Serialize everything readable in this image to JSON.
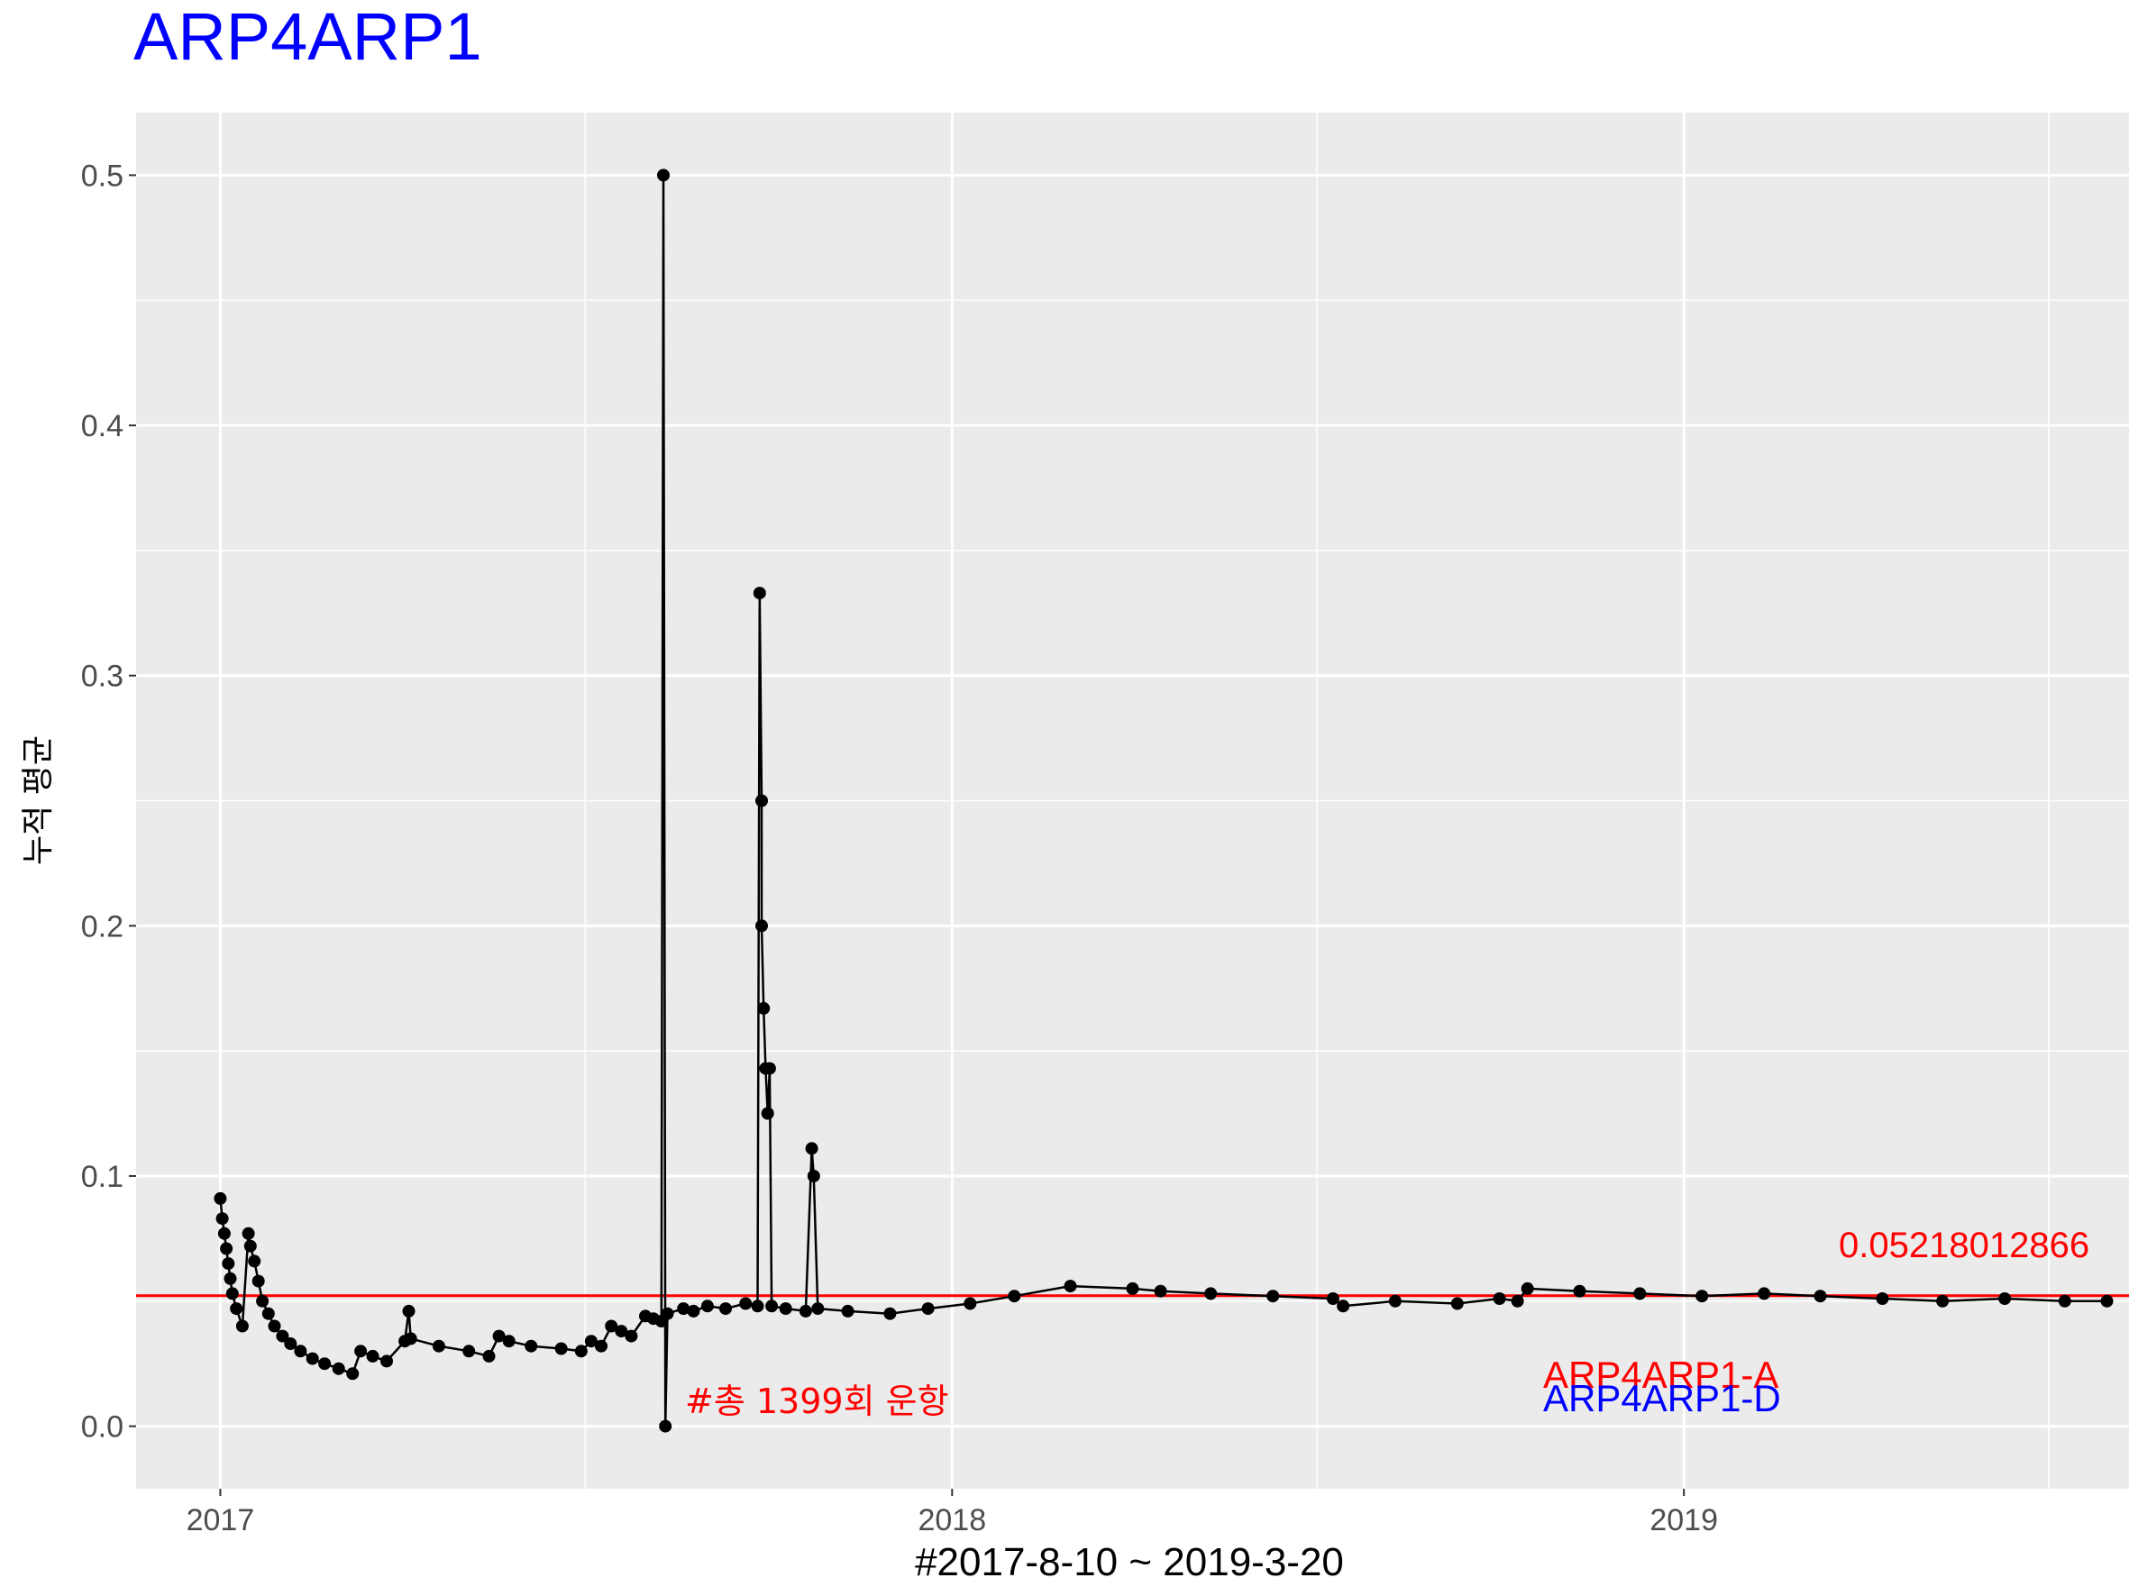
{
  "chart_data": {
    "type": "line",
    "title": "ARP4ARP1",
    "xlabel": "#2017-8-10 ~ 2019-3-20",
    "ylabel": "누적 평균",
    "x_ticks": [
      "2017",
      "2018",
      "2019"
    ],
    "y_ticks": [
      "0.0",
      "0.1",
      "0.2",
      "0.3",
      "0.4",
      "0.5"
    ],
    "xlim": [
      "2016-11-20",
      "2019-08-11"
    ],
    "ylim": [
      -0.025,
      0.525
    ],
    "grid": true,
    "colors": {
      "panel": "#ebebeb",
      "grid": "#ffffff",
      "line": "#000000",
      "reference_line": "#ff0000",
      "title": "#0000ff",
      "label_a": "#ff0000",
      "label_d": "#0000ff",
      "count_annotation": "#ff0000"
    },
    "reference_line": {
      "value": 0.05218,
      "label": "0.05218012866"
    },
    "annotations": {
      "count": "#총 1399회 운항",
      "series_a": "ARP4ARP1-A",
      "series_d": "ARP4ARP1-D"
    },
    "series": [
      {
        "x": [
          "2017-01-01",
          "2017-01-02",
          "2017-01-03",
          "2017-01-04",
          "2017-01-05",
          "2017-01-06",
          "2017-01-07",
          "2017-01-09",
          "2017-01-12",
          "2017-01-15",
          "2017-01-16",
          "2017-01-18",
          "2017-01-20",
          "2017-01-22",
          "2017-01-25",
          "2017-01-28",
          "2017-02-01",
          "2017-02-05",
          "2017-02-10",
          "2017-02-16",
          "2017-02-22",
          "2017-03-01",
          "2017-03-08",
          "2017-03-12",
          "2017-03-18",
          "2017-03-25",
          "2017-04-03",
          "2017-04-05",
          "2017-04-06",
          "2017-04-20",
          "2017-05-05",
          "2017-05-15",
          "2017-05-20",
          "2017-05-25",
          "2017-06-05",
          "2017-06-20",
          "2017-06-30",
          "2017-07-05",
          "2017-07-10",
          "2017-07-15",
          "2017-07-20",
          "2017-07-25",
          "2017-08-01",
          "2017-08-05",
          "2017-08-09",
          "2017-08-10",
          "2017-08-11",
          "2017-08-12",
          "2017-08-20",
          "2017-08-25",
          "2017-09-01",
          "2017-09-10",
          "2017-09-20",
          "2017-09-26",
          "2017-09-27",
          "2017-09-28",
          "2017-09-28",
          "2017-09-29",
          "2017-09-30",
          "2017-10-01",
          "2017-10-02",
          "2017-10-03",
          "2017-10-10",
          "2017-10-20",
          "2017-10-23",
          "2017-10-24",
          "2017-10-26",
          "2017-11-10",
          "2017-12-01",
          "2017-12-20",
          "2018-01-10",
          "2018-02-01",
          "2018-03-01",
          "2018-04-01",
          "2018-04-15",
          "2018-05-10",
          "2018-06-10",
          "2018-07-10",
          "2018-07-15",
          "2018-08-10",
          "2018-09-10",
          "2018-10-01",
          "2018-10-10",
          "2018-10-15",
          "2018-11-10",
          "2018-12-10",
          "2019-01-10",
          "2019-02-10",
          "2019-03-10",
          "2019-04-10",
          "2019-05-10",
          "2019-06-10",
          "2019-07-10",
          "2019-07-31"
        ],
        "y": [
          0.091,
          0.083,
          0.077,
          0.071,
          0.065,
          0.059,
          0.053,
          0.047,
          0.04,
          0.077,
          0.072,
          0.066,
          0.058,
          0.05,
          0.045,
          0.04,
          0.036,
          0.033,
          0.03,
          0.027,
          0.025,
          0.023,
          0.021,
          0.03,
          0.028,
          0.026,
          0.034,
          0.046,
          0.035,
          0.032,
          0.03,
          0.028,
          0.036,
          0.034,
          0.032,
          0.031,
          0.03,
          0.034,
          0.032,
          0.04,
          0.038,
          0.036,
          0.044,
          0.043,
          0.042,
          0.5,
          0.0,
          0.045,
          0.047,
          0.046,
          0.048,
          0.047,
          0.049,
          0.048,
          0.333,
          0.25,
          0.2,
          0.167,
          0.143,
          0.125,
          0.143,
          0.048,
          0.047,
          0.046,
          0.111,
          0.1,
          0.047,
          0.046,
          0.045,
          0.047,
          0.049,
          0.052,
          0.056,
          0.055,
          0.054,
          0.053,
          0.052,
          0.051,
          0.048,
          0.05,
          0.049,
          0.051,
          0.05,
          0.055,
          0.054,
          0.053,
          0.052,
          0.053,
          0.052,
          0.051,
          0.05,
          0.051,
          0.05,
          0.05
        ]
      }
    ]
  }
}
